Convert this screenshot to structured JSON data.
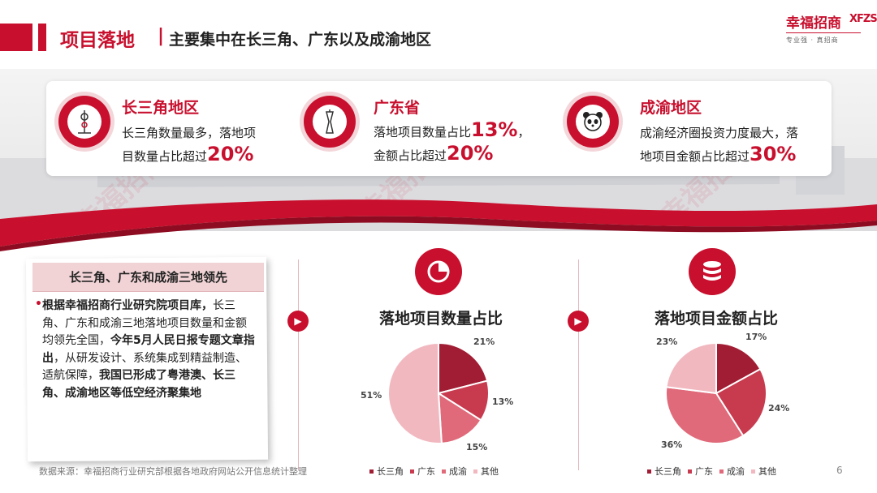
{
  "header": {
    "title": "项目落地",
    "separator": "|",
    "subtitle": "主要集中在长三角、广东以及成渝地区"
  },
  "logo": {
    "name": "幸福招商",
    "mark": "XFZS",
    "slogan": "专业强 · 真招商"
  },
  "highlights": [
    {
      "title": "长三角地区",
      "line1": "长三角数量最多，落地项",
      "line2": "目数量占比超过",
      "pct": "20%",
      "icon": "tv-tower-icon"
    },
    {
      "title": "广东省",
      "line1": "落地项目数量占比",
      "pct1": "13%",
      "line1_end": "，",
      "line2": "金额占比超过",
      "pct": "20%",
      "icon": "canton-tower-icon"
    },
    {
      "title": "成渝地区",
      "line1": "成渝经济圈投资力度最大，落",
      "line2": "地项目金额占比超过",
      "pct": "30%",
      "icon": "panda-icon"
    }
  ],
  "note": {
    "heading": "长三角、广东和成渝三地领先",
    "bullet": "•",
    "p1_bold": "根据幸福招商行业研究院项目库，",
    "p1": "长三角、广东和成渝三地落地项目数量和金额均领先全国，",
    "p2_bold": "今年5月人民日报专题文章指出",
    "p2": "，从研发设计、系统集成到精益制造、适航保障，",
    "p3_bold": "我国已形成了粤港澳、长三角、成渝地区等低空经济聚集地"
  },
  "colors": {
    "brand": "#c8102e",
    "series": [
      "#a11d33",
      "#c83b4f",
      "#e06a7a",
      "#f2b8c0"
    ]
  },
  "chart_data": [
    {
      "type": "pie",
      "title": "落地项目数量占比",
      "icon": "pie-chart-icon",
      "categories": [
        "长三角",
        "广东",
        "成渝",
        "其他"
      ],
      "values": [
        21,
        13,
        15,
        51
      ],
      "labels": [
        "21%",
        "13%",
        "15%",
        "51%"
      ]
    },
    {
      "type": "pie",
      "title": "落地项目金额占比",
      "icon": "coins-stack-icon",
      "categories": [
        "长三角",
        "广东",
        "成渝",
        "其他"
      ],
      "values": [
        17,
        24,
        36,
        23
      ],
      "labels": [
        "17%",
        "24%",
        "36%",
        "23%"
      ]
    }
  ],
  "footer": {
    "source": "数据来源：幸福招商行业研究部根据各地政府网站公开信息统计整理",
    "page": "6"
  }
}
